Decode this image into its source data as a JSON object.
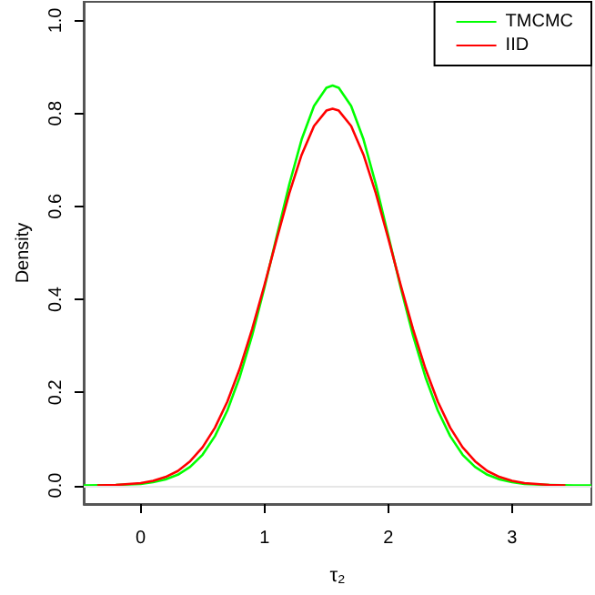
{
  "chart_data": {
    "type": "line",
    "xlabel": "τ₂",
    "ylabel": "Density",
    "xlim": [
      -0.46,
      3.64
    ],
    "xticks": [
      0,
      1,
      2,
      3
    ],
    "ylim": [
      -0.04,
      1.04
    ],
    "yticks": [
      {
        "value": 0,
        "label": "0.0"
      },
      0.2,
      0.4,
      0.6,
      0.8,
      {
        "value": 1,
        "label": "1.0"
      }
    ],
    "legend": "top right",
    "grid": false,
    "marker": "none",
    "line_style": "solid",
    "ref_lines": [
      {
        "axis": "y",
        "value": 0,
        "color": "#e6e6e6"
      }
    ],
    "series": [
      {
        "name": "TMCMC",
        "color": "#00ff00",
        "x": [
          -0.46,
          -0.2,
          0,
          0.1,
          0.2,
          0.3,
          0.4,
          0.5,
          0.6,
          0.7,
          0.8,
          0.9,
          1.0,
          1.1,
          1.2,
          1.3,
          1.4,
          1.5,
          1.55,
          1.6,
          1.7,
          1.8,
          1.9,
          2.0,
          2.1,
          2.2,
          2.3,
          2.4,
          2.5,
          2.6,
          2.7,
          2.8,
          2.9,
          3.0,
          3.1,
          3.3,
          3.5,
          3.64
        ],
        "values": [
          0.0,
          0.001,
          0.003,
          0.007,
          0.013,
          0.023,
          0.04,
          0.066,
          0.106,
          0.161,
          0.233,
          0.322,
          0.426,
          0.537,
          0.647,
          0.744,
          0.816,
          0.855,
          0.86,
          0.855,
          0.816,
          0.744,
          0.647,
          0.537,
          0.426,
          0.322,
          0.233,
          0.161,
          0.106,
          0.066,
          0.04,
          0.023,
          0.013,
          0.007,
          0.003,
          0.001,
          0.0,
          0.0
        ]
      },
      {
        "name": "IID",
        "color": "#ff0000",
        "x": [
          -0.35,
          -0.2,
          0,
          0.1,
          0.2,
          0.3,
          0.4,
          0.5,
          0.6,
          0.7,
          0.8,
          0.9,
          1.0,
          1.1,
          1.2,
          1.3,
          1.4,
          1.5,
          1.55,
          1.6,
          1.7,
          1.8,
          1.9,
          2.0,
          2.1,
          2.2,
          2.3,
          2.4,
          2.5,
          2.6,
          2.7,
          2.8,
          2.9,
          3.0,
          3.1,
          3.2,
          3.3,
          3.43
        ],
        "values": [
          0.0,
          0.001,
          0.005,
          0.01,
          0.018,
          0.031,
          0.052,
          0.082,
          0.124,
          0.18,
          0.251,
          0.336,
          0.431,
          0.531,
          0.628,
          0.711,
          0.773,
          0.806,
          0.81,
          0.806,
          0.773,
          0.711,
          0.628,
          0.531,
          0.431,
          0.336,
          0.251,
          0.18,
          0.124,
          0.082,
          0.052,
          0.031,
          0.018,
          0.01,
          0.005,
          0.003,
          0.001,
          0.0
        ]
      }
    ]
  }
}
